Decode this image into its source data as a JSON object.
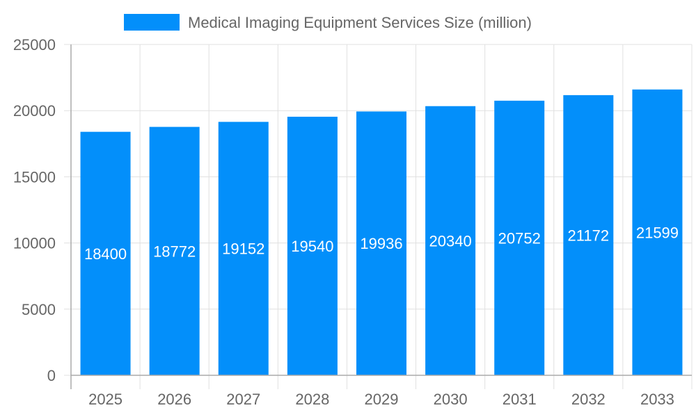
{
  "chart_data": {
    "type": "bar",
    "title": "",
    "xlabel": "",
    "ylabel": "",
    "categories": [
      "2025",
      "2026",
      "2027",
      "2028",
      "2029",
      "2030",
      "2031",
      "2032",
      "2033"
    ],
    "series": [
      {
        "name": "Medical Imaging Equipment Services Size (million)",
        "values": [
          18400,
          18772,
          19152,
          19540,
          19936,
          20340,
          20752,
          21172,
          21599
        ],
        "color": "#038ffa"
      }
    ],
    "ylim": [
      0,
      25000
    ],
    "yticks": [
      "0",
      "5000",
      "10000",
      "15000",
      "20000",
      "25000"
    ],
    "grid": true,
    "legend": "top-center",
    "data_labels": true
  }
}
